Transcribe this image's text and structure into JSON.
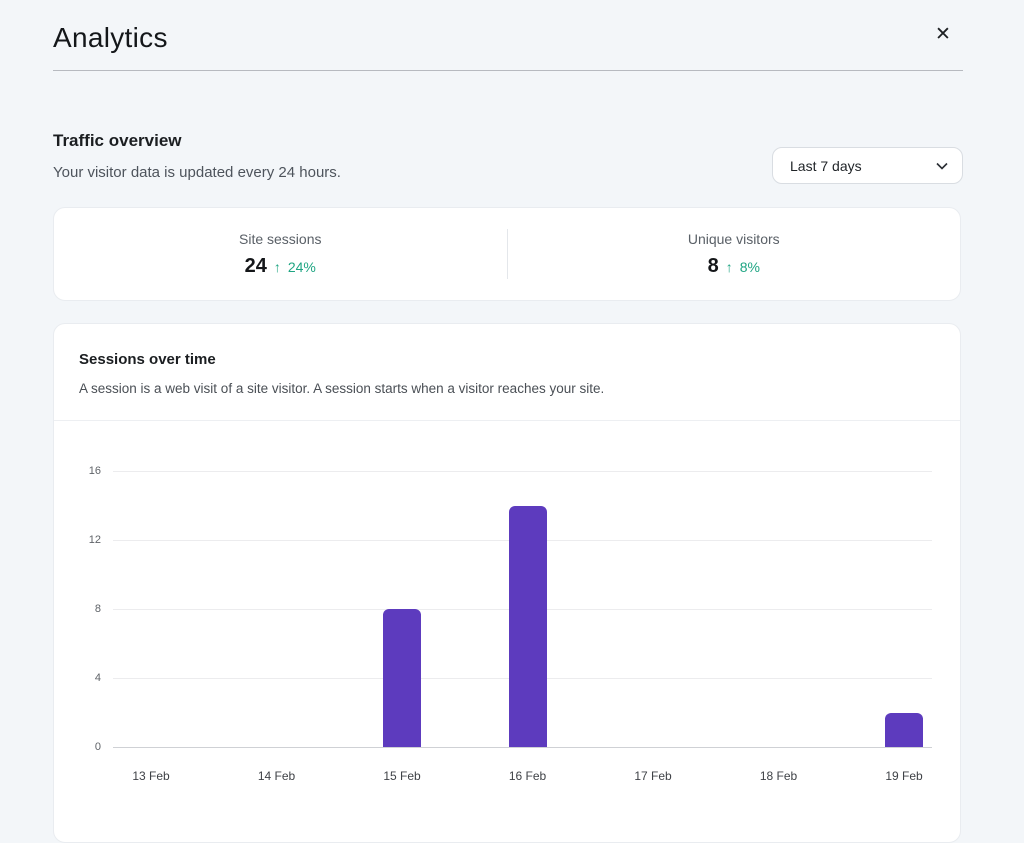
{
  "header": {
    "title": "Analytics",
    "close_icon": "✕"
  },
  "traffic": {
    "title": "Traffic overview",
    "subtitle": "Your visitor data is updated every 24 hours.",
    "range_selector": {
      "selected": "Last 7 days"
    }
  },
  "stats": [
    {
      "label": "Site sessions",
      "value": "24",
      "arrow": "↑",
      "change": "24%"
    },
    {
      "label": "Unique visitors",
      "value": "8",
      "arrow": "↑",
      "change": "8%"
    }
  ],
  "sessions": {
    "title": "Sessions over time",
    "description": "A session is a web visit of a site visitor. A session starts when a visitor reaches your site."
  },
  "chart_data": {
    "type": "bar",
    "title": "Sessions over time",
    "categories": [
      "13 Feb",
      "14 Feb",
      "15 Feb",
      "16 Feb",
      "17 Feb",
      "18 Feb",
      "19 Feb"
    ],
    "values": [
      0,
      0,
      8,
      14,
      0,
      0,
      2
    ],
    "xlabel": "",
    "ylabel": "",
    "yticks": [
      0,
      4,
      8,
      12,
      16
    ],
    "ylim": [
      0,
      16
    ],
    "grid": true,
    "legend": false,
    "bar_color": "#5d3bbe"
  },
  "colors": {
    "page_background": "#f3f6f9",
    "card_background": "#ffffff",
    "accent_purple": "#5d3bbe",
    "positive_teal": "#1fa583"
  }
}
